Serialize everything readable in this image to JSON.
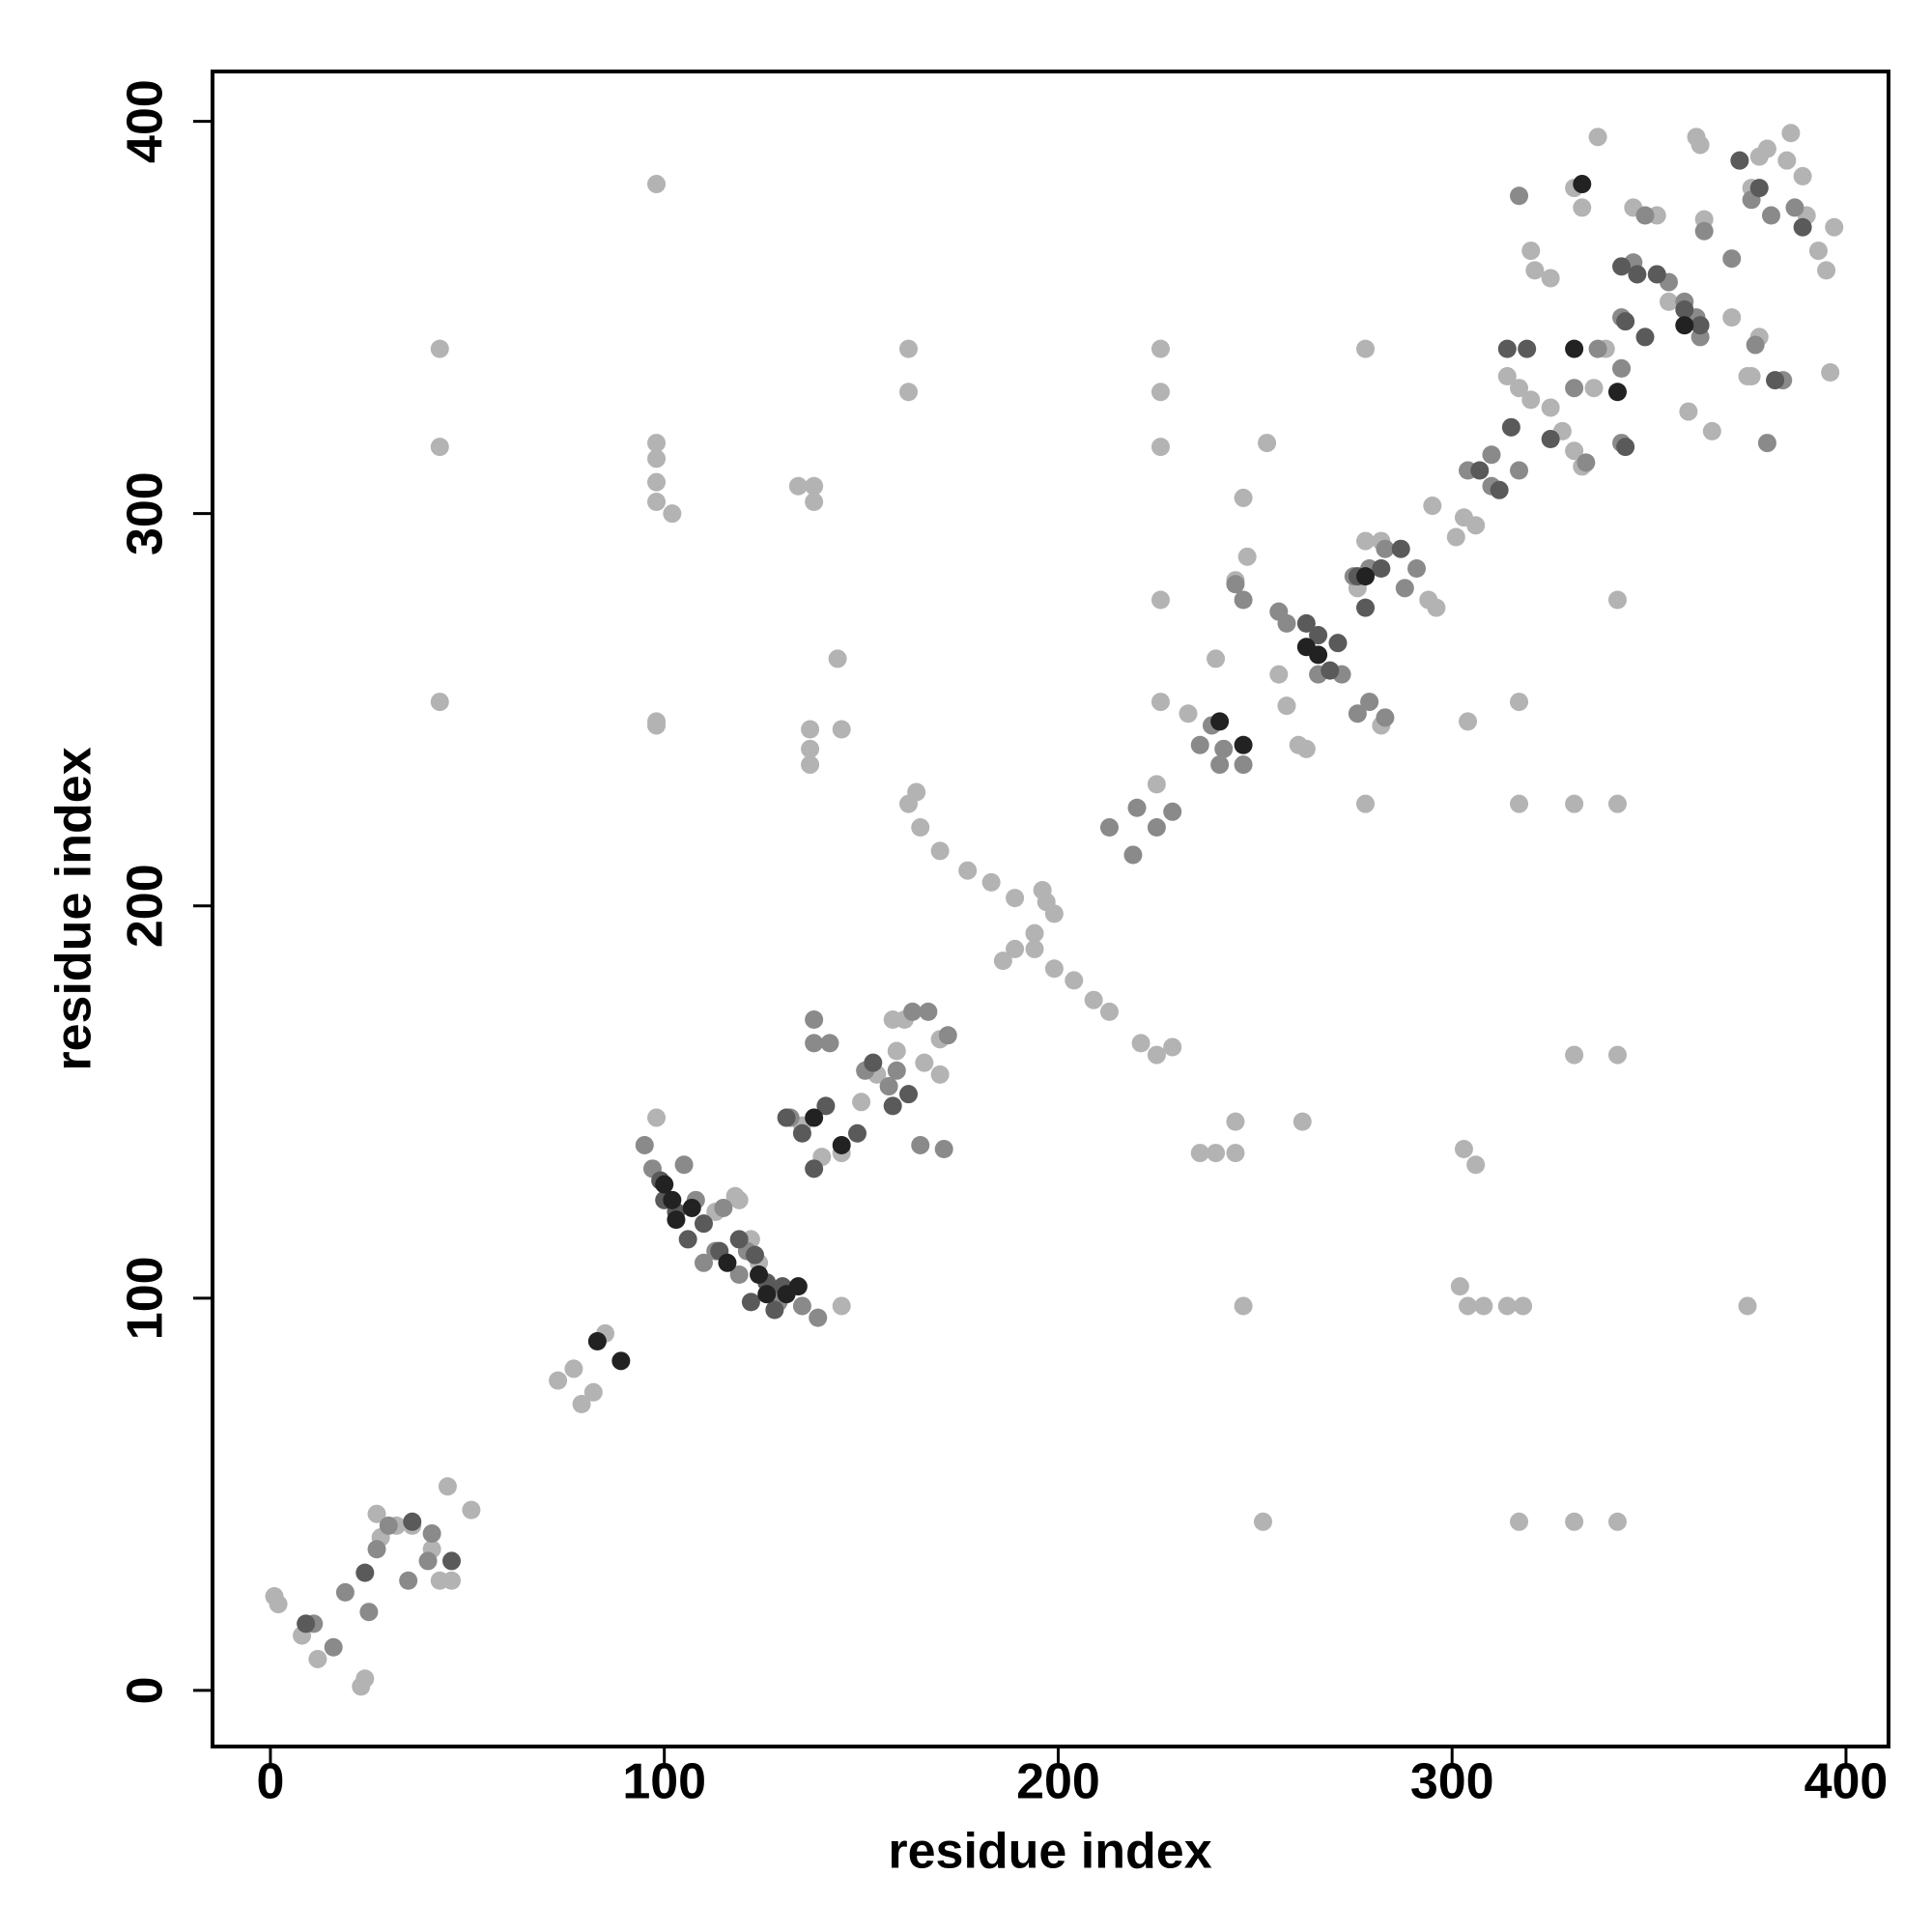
{
  "chart_data": {
    "type": "scatter",
    "x_label": "residue index",
    "y_label": "residue index",
    "xlim": [
      -14.7,
      410.8
    ],
    "ylim": [
      -14.3,
      412.7
    ],
    "xticks": [
      0,
      100,
      200,
      300,
      400
    ],
    "yticks": [
      0,
      100,
      200,
      300,
      400
    ],
    "series": [
      {
        "color": "#b3b3b3",
        "x": [
          1,
          2,
          23,
          24,
          27,
          28,
          32,
          36,
          41,
          43,
          46,
          45,
          51,
          8,
          12,
          43,
          43,
          43,
          73,
          77,
          79,
          82,
          85,
          98,
          98,
          98,
          98,
          98,
          102,
          98,
          98,
          98,
          134,
          138,
          138,
          144,
          137,
          137,
          137,
          145,
          162,
          162,
          162,
          164,
          165,
          170,
          177,
          183,
          189,
          196,
          197,
          199,
          194,
          189,
          186,
          194,
          199,
          204,
          209,
          213,
          221,
          225,
          229,
          158,
          161,
          159,
          166,
          170,
          154,
          150,
          170,
          135,
          140,
          145,
          145,
          119,
          122,
          124,
          118,
          113,
          253,
          247,
          226,
          226,
          226,
          226,
          226,
          236,
          240,
          245,
          245,
          247,
          262,
          252,
          278,
          278,
          225,
          233,
          240,
          245,
          248,
          256,
          258,
          261,
          263,
          276,
          278,
          282,
          294,
          296,
          282,
          295,
          301,
          306,
          303,
          304,
          303,
          306,
          302,
          304,
          308,
          314,
          318,
          375,
          317,
          317,
          331,
          342,
          331,
          342,
          317,
          331,
          342,
          342,
          314,
          317,
          320,
          325,
          328,
          331,
          333,
          320,
          321,
          325,
          331,
          333,
          337,
          339,
          343,
          346,
          352,
          355,
          360,
          362,
          363,
          364,
          366,
          371,
          375,
          376,
          378,
          380,
          385,
          386,
          389,
          390,
          393,
          395,
          396,
          397,
          376,
          378,
          336
        ],
        "values": [
          24,
          22,
          1,
          3,
          45,
          39,
          42,
          42,
          36,
          28,
          28,
          52,
          46,
          14,
          8,
          342,
          317,
          252,
          79,
          82,
          73,
          76,
          91,
          384,
          318,
          314,
          308,
          303,
          300,
          247,
          246,
          146,
          307,
          307,
          303,
          263,
          245,
          240,
          236,
          245,
          342,
          331,
          226,
          229,
          220,
          214,
          209,
          206,
          202,
          204,
          201,
          198,
          193,
          189,
          186,
          189,
          184,
          181,
          176,
          173,
          165,
          162,
          164,
          171,
          171,
          163,
          160,
          157,
          157,
          150,
          166,
          144,
          136,
          137,
          98,
          125,
          115,
          109,
          126,
          122,
          318,
          304,
          278,
          252,
          331,
          342,
          317,
          137,
          137,
          137,
          145,
          98,
          145,
          43,
          342,
          226,
          231,
          249,
          263,
          283,
          289,
          259,
          251,
          241,
          240,
          281,
          293,
          293,
          278,
          276,
          246,
          302,
          294,
          297,
          299,
          247,
          138,
          134,
          103,
          98,
          98,
          98,
          98,
          98,
          252,
          226,
          226,
          226,
          162,
          162,
          43,
          43,
          43,
          278,
          335,
          332,
          329,
          327,
          321,
          316,
          312,
          367,
          362,
          360,
          383,
          378,
          396,
          342,
          337,
          378,
          376,
          354,
          326,
          396,
          394,
          375,
          321,
          350,
          335,
          335,
          345,
          393,
          390,
          397,
          386,
          376,
          367,
          362,
          336,
          373,
          383,
          391,
          332
        ]
      },
      {
        "color": "#8a8a8a",
        "x": [
          11,
          16,
          19,
          25,
          27,
          30,
          35,
          40,
          41,
          95,
          97,
          105,
          108,
          115,
          113,
          121,
          119,
          129,
          135,
          139,
          110,
          138,
          138,
          142,
          151,
          157,
          159,
          163,
          167,
          172,
          165,
          171,
          132,
          213,
          219,
          220,
          225,
          229,
          236,
          239,
          242,
          247,
          241,
          245,
          247,
          256,
          258,
          266,
          272,
          276,
          279,
          283,
          275,
          279,
          283,
          288,
          291,
          304,
          310,
          317,
          310,
          317,
          331,
          334,
          343,
          343,
          337,
          343,
          349,
          346,
          355,
          359,
          362,
          363,
          364,
          371,
          376,
          381,
          377,
          380,
          387,
          384
        ],
        "values": [
          17,
          11,
          25,
          20,
          36,
          42,
          28,
          33,
          40,
          139,
          133,
          134,
          125,
          123,
          112,
          112,
          106,
          99,
          98,
          95,
          109,
          171,
          165,
          165,
          158,
          154,
          158,
          173,
          173,
          167,
          139,
          138,
          146,
          220,
          213,
          225,
          220,
          224,
          241,
          246,
          240,
          236,
          236,
          282,
          278,
          275,
          272,
          259,
          259,
          249,
          252,
          248,
          284,
          286,
          291,
          281,
          286,
          311,
          315,
          311,
          307,
          381,
          332,
          313,
          318,
          337,
          342,
          350,
          376,
          364,
          359,
          354,
          350,
          345,
          372,
          365,
          380,
          376,
          343,
          318,
          378,
          334
        ]
      },
      {
        "color": "#5a5a5a",
        "x": [
          9,
          24,
          36,
          46,
          99,
          100,
          103,
          106,
          110,
          114,
          119,
          123,
          126,
          130,
          122,
          128,
          131,
          135,
          141,
          149,
          138,
          153,
          158,
          162,
          263,
          266,
          271,
          269,
          276,
          278,
          282,
          287,
          307,
          312,
          315,
          319,
          325,
          314,
          344,
          343,
          347,
          352,
          359,
          363,
          349,
          373,
          378,
          382,
          389,
          344
        ],
        "values": [
          17,
          30,
          43,
          33,
          130,
          125,
          122,
          115,
          119,
          112,
          115,
          111,
          104,
          103,
          99,
          97,
          146,
          142,
          149,
          142,
          133,
          160,
          149,
          152,
          272,
          269,
          267,
          260,
          284,
          276,
          286,
          291,
          311,
          306,
          322,
          342,
          319,
          342,
          349,
          363,
          361,
          361,
          352,
          348,
          345,
          390,
          383,
          334,
          373,
          317
        ]
      },
      {
        "color": "#222222",
        "x": [
          83,
          89,
          100,
          102,
          103,
          107,
          116,
          124,
          126,
          131,
          134,
          138,
          145,
          263,
          266,
          278,
          331,
          333,
          342,
          241,
          247,
          359
        ],
        "values": [
          89,
          84,
          129,
          125,
          120,
          123,
          109,
          106,
          101,
          101,
          103,
          146,
          139,
          266,
          264,
          284,
          342,
          384,
          331,
          247,
          241,
          348
        ]
      }
    ]
  }
}
